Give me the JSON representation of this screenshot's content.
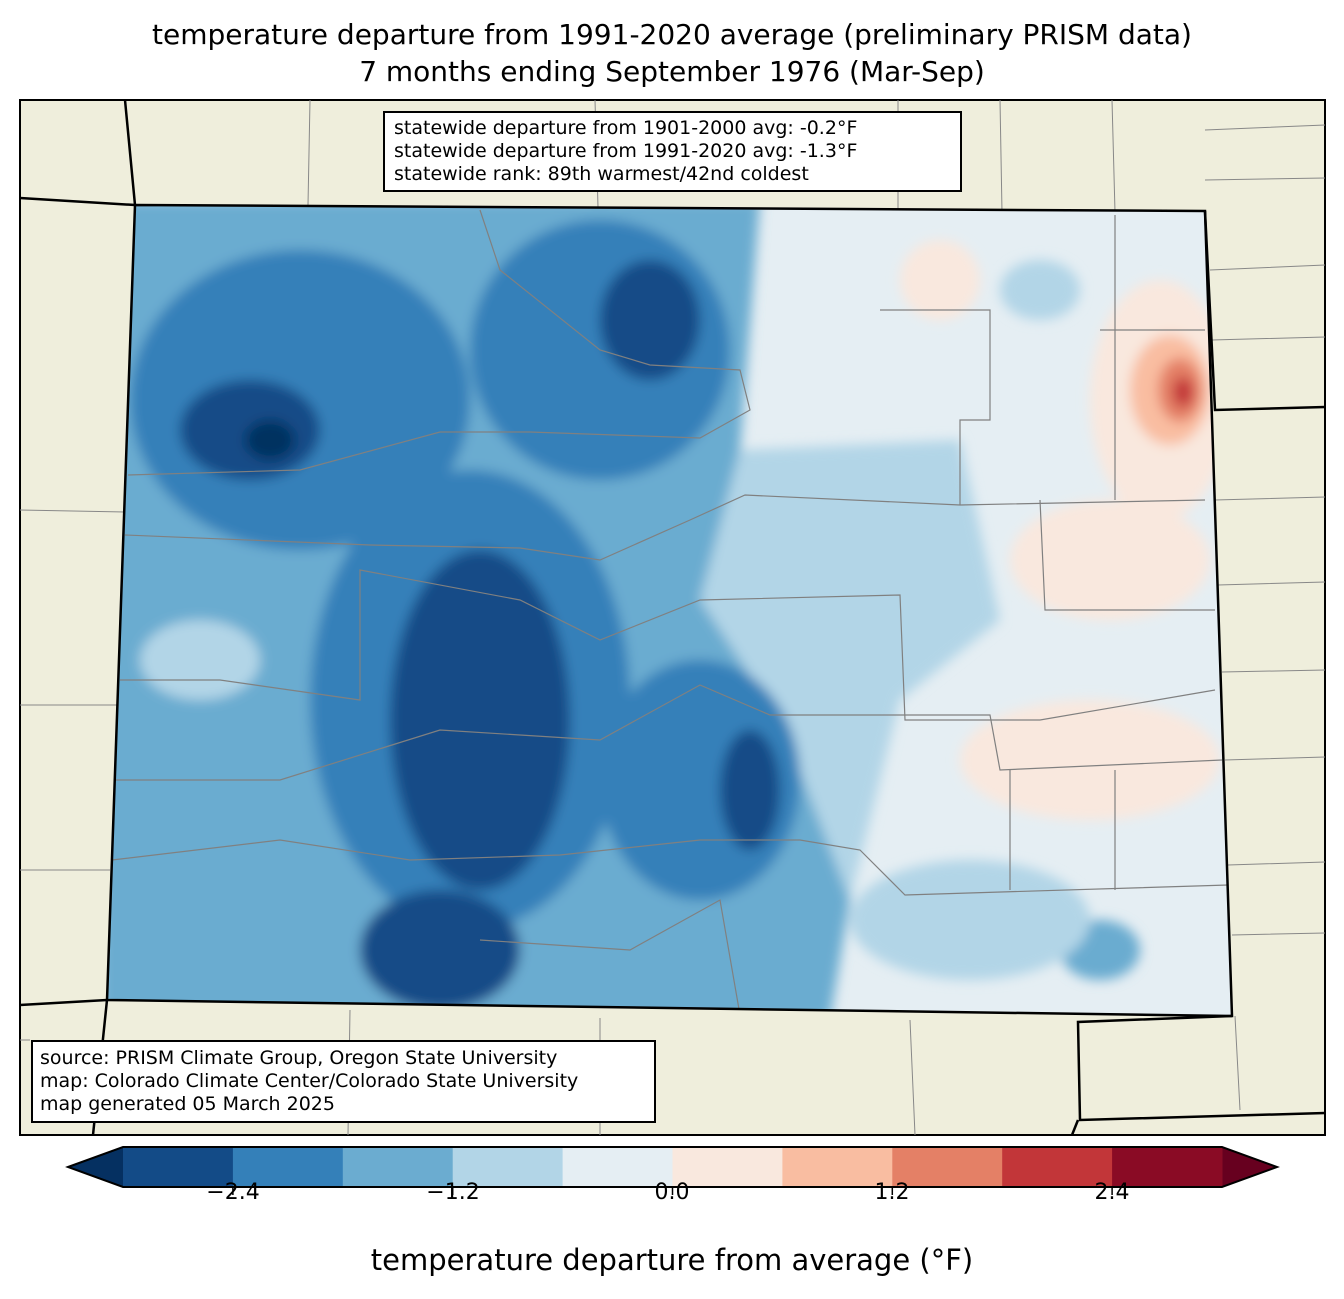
{
  "title": {
    "line1": "temperature departure from 1991-2020 average (preliminary PRISM data)",
    "line2": "7 months ending September 1976 (Mar-Sep)"
  },
  "stats": [
    "statewide departure from 1901-2000 avg: -0.2°F",
    "statewide departure from 1991-2020 avg: -1.3°F",
    "statewide rank: 89th warmest/42nd coldest"
  ],
  "source": [
    "source: PRISM Climate Group, Oregon State University",
    "map: Colorado Climate Center/Colorado State University",
    "map generated 05 March 2025"
  ],
  "chart_data": {
    "type": "heatmap",
    "region": "Colorado",
    "colorbar": {
      "label": "temperature departure from average (°F)",
      "levels": [
        -3.0,
        -2.4,
        -1.8,
        -1.2,
        -0.6,
        0.0,
        0.6,
        1.2,
        1.8,
        2.4,
        3.0
      ],
      "colors": [
        "#134b87",
        "#3480b9",
        "#6bacd0",
        "#b2d5e7",
        "#e5eef3",
        "#f9e8de",
        "#f9bda1",
        "#e48066",
        "#c23639",
        "#8a0b25"
      ],
      "extend_low_color": "#053061",
      "extend_high_color": "#67001f",
      "ticks": [
        "−2.4",
        "−1.2",
        "0.0",
        "1.2",
        "2.4"
      ]
    },
    "pattern": "cooler (−1.8 to below −2.4) over western and central mountains; near 0 to slightly warm (0 to +1.8) on eastern plains, peak warm near northeast border"
  },
  "colors": {
    "land": "#efeedc",
    "county_lines": "#808080"
  }
}
